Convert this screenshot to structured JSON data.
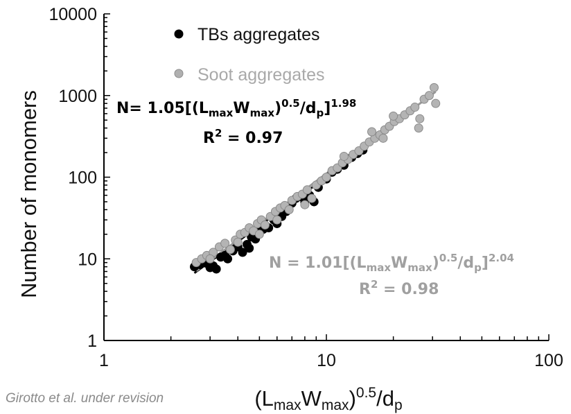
{
  "chart_data": {
    "type": "scatter",
    "scale": {
      "x": "log",
      "y": "log"
    },
    "xlim": [
      1,
      100
    ],
    "ylim": [
      1,
      10000
    ],
    "x_ticks": [
      "1",
      "10",
      "100"
    ],
    "y_ticks": [
      "1",
      "10",
      "100",
      "1000",
      "10000"
    ],
    "ylabel": "Number of monomers",
    "xlabel": {
      "main_a": "(L",
      "sub_a": "max",
      "main_b": "W",
      "sub_b": "max",
      "main_c": ")",
      "sup": "0.5",
      "main_d": "/d",
      "sub_c": "p"
    },
    "grid": false,
    "legend_position": "top-left (inside plot)",
    "source_note": "Girotto et al. under revision",
    "series": [
      {
        "name": "TBs aggregates",
        "color": "#000000",
        "points": [
          [
            2.55,
            8.0
          ],
          [
            2.7,
            8.5
          ],
          [
            2.9,
            8.8
          ],
          [
            3.0,
            7.8
          ],
          [
            3.1,
            8.2
          ],
          [
            3.2,
            7.5
          ],
          [
            3.35,
            10.5
          ],
          [
            3.5,
            11.0
          ],
          [
            3.6,
            10.0
          ],
          [
            3.8,
            12.5
          ],
          [
            4.0,
            14.0
          ],
          [
            4.2,
            12.0
          ],
          [
            4.4,
            15.0
          ],
          [
            4.5,
            13.5
          ],
          [
            4.6,
            18.5
          ],
          [
            4.8,
            17.5
          ],
          [
            5.0,
            21.0
          ],
          [
            5.2,
            23.0
          ],
          [
            5.5,
            24.0
          ],
          [
            5.8,
            30.0
          ],
          [
            6.0,
            27.0
          ],
          [
            6.3,
            33.0
          ],
          [
            6.6,
            38.0
          ],
          [
            7.0,
            48.0
          ],
          [
            7.3,
            55.0
          ],
          [
            7.6,
            58.0
          ],
          [
            8.0,
            50.0
          ],
          [
            8.4,
            60.0
          ],
          [
            8.8,
            50.0
          ],
          [
            9.2,
            75.0
          ],
          [
            10.0,
            95.0
          ],
          [
            10.6,
            115.0
          ],
          [
            11.2,
            125.0
          ],
          [
            12.0,
            140.0
          ],
          [
            13.0,
            175.0
          ],
          [
            13.8,
            195.0
          ],
          [
            14.6,
            215.0
          ]
        ],
        "fit": {
          "coefficient": 1.05,
          "exponent": 1.98,
          "x_range": [
            2.55,
            15.0
          ],
          "r2": 0.97
        },
        "equation": {
          "main_a": "N= 1.05[(L",
          "sub_a": "max",
          "main_b": "W",
          "sub_b": "max",
          "main_c": ")",
          "sup_a": "0.5",
          "main_d": "/d",
          "sub_c": "p",
          "main_e": "]",
          "sup_b": "1.98"
        },
        "r2_label": {
          "main": "R",
          "sup": "2",
          "rest": " = 0.97"
        }
      },
      {
        "name": "Soot aggregates",
        "color": "#a9a9a9",
        "points": [
          [
            2.6,
            9.0
          ],
          [
            2.75,
            10.0
          ],
          [
            2.9,
            11.0
          ],
          [
            3.1,
            12.0
          ],
          [
            3.3,
            14.0
          ],
          [
            3.5,
            15.5
          ],
          [
            3.7,
            13.0
          ],
          [
            3.9,
            17.0
          ],
          [
            4.1,
            20.0
          ],
          [
            4.3,
            21.0
          ],
          [
            4.5,
            24.0
          ],
          [
            4.7,
            22.0
          ],
          [
            4.9,
            27.0
          ],
          [
            5.1,
            30.0
          ],
          [
            5.3,
            26.0
          ],
          [
            5.6,
            33.0
          ],
          [
            5.9,
            38.0
          ],
          [
            6.2,
            42.0
          ],
          [
            6.5,
            45.0
          ],
          [
            6.8,
            40.0
          ],
          [
            7.0,
            52.0
          ],
          [
            7.4,
            58.0
          ],
          [
            7.8,
            62.0
          ],
          [
            8.2,
            70.0
          ],
          [
            8.6,
            55.0
          ],
          [
            9.0,
            80.0
          ],
          [
            9.5,
            90.0
          ],
          [
            10.0,
            100.0
          ],
          [
            10.6,
            120.0
          ],
          [
            11.2,
            130.0
          ],
          [
            11.8,
            150.0
          ],
          [
            12.5,
            165.0
          ],
          [
            13.2,
            190.0
          ],
          [
            14.0,
            210.0
          ],
          [
            14.8,
            240.0
          ],
          [
            15.6,
            270.0
          ],
          [
            16.5,
            300.0
          ],
          [
            17.4,
            330.0
          ],
          [
            18.3,
            380.0
          ],
          [
            19.2,
            420.0
          ],
          [
            20.2,
            480.0
          ],
          [
            21.3,
            520.0
          ],
          [
            22.5,
            580.0
          ],
          [
            23.8,
            650.0
          ],
          [
            25.0,
            720.0
          ],
          [
            26.3,
            520.0
          ],
          [
            27.5,
            900.0
          ],
          [
            29.0,
            1000.0
          ],
          [
            30.5,
            1250.0
          ],
          [
            31.0,
            800.0
          ],
          [
            26.0,
            400.0
          ],
          [
            20.0,
            560.0
          ],
          [
            18.0,
            300.0
          ],
          [
            16.0,
            360.0
          ],
          [
            12.0,
            180.0
          ],
          [
            8.0,
            46.0
          ],
          [
            6.0,
            30.0
          ],
          [
            5.0,
            20.0
          ],
          [
            4.0,
            16.0
          ],
          [
            3.0,
            10.0
          ]
        ],
        "fit": {
          "coefficient": 1.01,
          "exponent": 2.04,
          "x_range": [
            2.6,
            31.0
          ],
          "r2": 0.98
        },
        "equation": {
          "main_a": "N = 1.01[(L",
          "sub_a": "max",
          "main_b": "W",
          "sub_b": "max",
          "main_c": ")",
          "sup_a": "0.5",
          "main_d": "/d",
          "sub_c": "p",
          "main_e": "]",
          "sup_b": "2.04"
        },
        "r2_label": {
          "main": "R",
          "sup": "2",
          "rest": " = 0.98"
        }
      }
    ]
  }
}
